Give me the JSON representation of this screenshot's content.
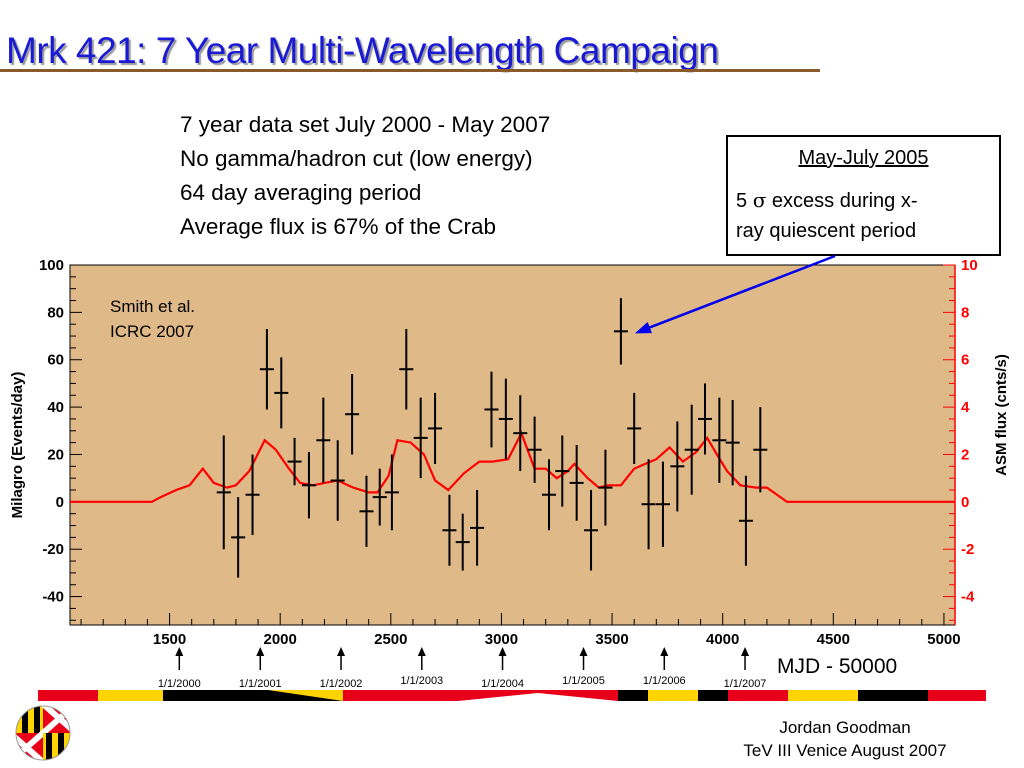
{
  "title": "Mrk 421: 7 Year Multi-Wavelength Campaign",
  "notes": [
    "7 year data set July 2000 - May 2007",
    "No gamma/hadron cut (low energy)",
    "64 day averaging period",
    "Average flux is 67% of the Crab"
  ],
  "callout": {
    "title": "May-July 2005",
    "line1_prefix": "5 ",
    "line1_symbol": "σ",
    "line1_suffix": " excess during x-",
    "line2": "ray quiescent period"
  },
  "mjd_label": "MJD - 50000",
  "date_markers": [
    {
      "label": "1/1/2000",
      "x": 1544
    },
    {
      "label": "1/1/2001",
      "x": 1910
    },
    {
      "label": "1/1/2002",
      "x": 2275
    },
    {
      "label": "1/1/2003",
      "x": 2640
    },
    {
      "label": "1/1/2004",
      "x": 3005
    },
    {
      "label": "1/1/2005",
      "x": 3371
    },
    {
      "label": "1/1/2006",
      "x": 3736
    },
    {
      "label": "1/1/2007",
      "x": 4101
    }
  ],
  "footer": {
    "author": "Jordan Goodman",
    "event": "TeV III Venice August 2007"
  },
  "colors": {
    "title": "#1a1ad6",
    "plot_background": "#dfb987",
    "asm_line": "#ff0000",
    "arrow": "#0000ee",
    "stripe_red": "#e8001a",
    "stripe_yellow": "#ffd400",
    "stripe_black": "#000000"
  },
  "chart_data": {
    "type": "scatter",
    "annotation": "Smith et al.\nICRC 2007",
    "ylabel": "Milagro (Events/day)",
    "ylabel_right": "ASM flux (cnts/s)",
    "xlim": [
      1050,
      5050
    ],
    "ylim": [
      -52,
      100
    ],
    "ylim_right": [
      -5.2,
      10
    ],
    "x_ticks": [
      1500,
      2000,
      2500,
      3000,
      3500,
      4000,
      4500,
      5000
    ],
    "y_ticks": [
      -40,
      -20,
      0,
      20,
      40,
      60,
      80,
      100
    ],
    "y_ticks_right": [
      -4,
      -2,
      0,
      2,
      4,
      6,
      8,
      10
    ],
    "series": [
      {
        "name": "Milagro",
        "color": "#000000",
        "points": [
          {
            "x": 1745,
            "y": 4,
            "err": 24
          },
          {
            "x": 1810,
            "y": -15,
            "err": 17
          },
          {
            "x": 1875,
            "y": 3,
            "err": 17
          },
          {
            "x": 1940,
            "y": 56,
            "err": 17
          },
          {
            "x": 2005,
            "y": 46,
            "err": 15
          },
          {
            "x": 2065,
            "y": 17,
            "err": 10
          },
          {
            "x": 2130,
            "y": 7,
            "err": 14
          },
          {
            "x": 2195,
            "y": 26,
            "err": 18
          },
          {
            "x": 2260,
            "y": 9,
            "err": 17
          },
          {
            "x": 2325,
            "y": 37,
            "err": 17
          },
          {
            "x": 2390,
            "y": -4,
            "err": 15
          },
          {
            "x": 2450,
            "y": 2,
            "err": 12
          },
          {
            "x": 2505,
            "y": 4,
            "err": 16
          },
          {
            "x": 2570,
            "y": 56,
            "err": 17
          },
          {
            "x": 2635,
            "y": 27,
            "err": 17
          },
          {
            "x": 2700,
            "y": 31,
            "err": 15
          },
          {
            "x": 2765,
            "y": -12,
            "err": 15
          },
          {
            "x": 2825,
            "y": -17,
            "err": 12
          },
          {
            "x": 2890,
            "y": -11,
            "err": 16
          },
          {
            "x": 2955,
            "y": 39,
            "err": 16
          },
          {
            "x": 3020,
            "y": 35,
            "err": 17
          },
          {
            "x": 3085,
            "y": 29,
            "err": 16
          },
          {
            "x": 3150,
            "y": 22,
            "err": 14
          },
          {
            "x": 3215,
            "y": 3,
            "err": 15
          },
          {
            "x": 3275,
            "y": 13,
            "err": 15
          },
          {
            "x": 3340,
            "y": 8,
            "err": 16
          },
          {
            "x": 3405,
            "y": -12,
            "err": 17
          },
          {
            "x": 3470,
            "y": 6,
            "err": 16
          },
          {
            "x": 3540,
            "y": 72,
            "err": 14
          },
          {
            "x": 3600,
            "y": 31,
            "err": 15
          },
          {
            "x": 3665,
            "y": -1,
            "err": 19
          },
          {
            "x": 3730,
            "y": -1,
            "err": 18
          },
          {
            "x": 3795,
            "y": 15,
            "err": 19
          },
          {
            "x": 3860,
            "y": 22,
            "err": 19
          },
          {
            "x": 3920,
            "y": 35,
            "err": 15
          },
          {
            "x": 3985,
            "y": 26,
            "err": 18
          },
          {
            "x": 4045,
            "y": 25,
            "err": 18
          },
          {
            "x": 4105,
            "y": -8,
            "err": 19
          },
          {
            "x": 4170,
            "y": 22,
            "err": 18
          }
        ]
      },
      {
        "name": "ASM",
        "color": "#ff0000",
        "points": [
          [
            1050,
            0
          ],
          [
            1420,
            0
          ],
          [
            1460,
            0.2
          ],
          [
            1530,
            0.5
          ],
          [
            1590,
            0.7
          ],
          [
            1650,
            1.4
          ],
          [
            1700,
            0.8
          ],
          [
            1760,
            0.6
          ],
          [
            1800,
            0.7
          ],
          [
            1860,
            1.3
          ],
          [
            1930,
            2.6
          ],
          [
            1980,
            2.2
          ],
          [
            2040,
            1.4
          ],
          [
            2090,
            0.8
          ],
          [
            2150,
            0.7
          ],
          [
            2200,
            0.8
          ],
          [
            2260,
            0.9
          ],
          [
            2330,
            0.6
          ],
          [
            2400,
            0.4
          ],
          [
            2440,
            0.4
          ],
          [
            2490,
            1.1
          ],
          [
            2530,
            2.6
          ],
          [
            2590,
            2.5
          ],
          [
            2650,
            2.0
          ],
          [
            2700,
            0.9
          ],
          [
            2760,
            0.5
          ],
          [
            2830,
            1.2
          ],
          [
            2900,
            1.7
          ],
          [
            2960,
            1.7
          ],
          [
            3030,
            1.8
          ],
          [
            3090,
            2.9
          ],
          [
            3150,
            1.4
          ],
          [
            3200,
            1.4
          ],
          [
            3250,
            1.0
          ],
          [
            3300,
            1.3
          ],
          [
            3330,
            1.6
          ],
          [
            3390,
            1.0
          ],
          [
            3440,
            0.6
          ],
          [
            3480,
            0.7
          ],
          [
            3540,
            0.7
          ],
          [
            3600,
            1.4
          ],
          [
            3650,
            1.6
          ],
          [
            3700,
            1.8
          ],
          [
            3760,
            2.3
          ],
          [
            3820,
            1.7
          ],
          [
            3880,
            2.1
          ],
          [
            3930,
            2.7
          ],
          [
            3980,
            1.9
          ],
          [
            4020,
            1.3
          ],
          [
            4080,
            0.7
          ],
          [
            4150,
            0.6
          ],
          [
            4200,
            0.6
          ],
          [
            4290,
            0
          ],
          [
            5050,
            0
          ]
        ]
      }
    ],
    "highlight": {
      "x": 3540,
      "y": 72
    }
  }
}
